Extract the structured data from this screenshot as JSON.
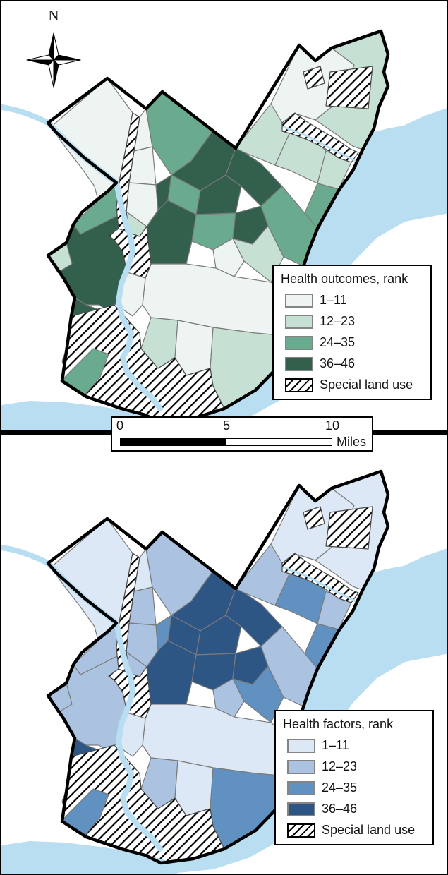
{
  "figure": {
    "compass_label": "N",
    "frame_border_color": "#000000"
  },
  "scalebar": {
    "tick_labels": [
      "0",
      "5",
      "10"
    ],
    "unit": "Miles"
  },
  "panels": [
    {
      "id": "outcomes",
      "legend_title": "Health outcomes, rank",
      "classes": [
        "1–11",
        "12–23",
        "24–35",
        "36–46"
      ],
      "special_label": "Special land use",
      "palette": [
        "#eef4f2",
        "#c6e1d4",
        "#6aaa8e",
        "#32604c"
      ]
    },
    {
      "id": "factors",
      "legend_title": "Health factors, rank",
      "classes": [
        "1–11",
        "12–23",
        "24–35",
        "36–46"
      ],
      "special_label": "Special land use",
      "palette": [
        "#dce8f5",
        "#abc3e1",
        "#6191c1",
        "#2e5685"
      ]
    }
  ],
  "map_data": {
    "water_color": "#b9ddf1",
    "city_boundary_color": "#000000",
    "district_line_color": "#7a7a7a",
    "hatch_label": "Special land use",
    "districts": [
      {
        "id": "roxborough",
        "outcomes": 1,
        "factors": 1
      },
      {
        "id": "chestnut-hill",
        "outcomes": 1,
        "factors": 1
      },
      {
        "id": "mt-airy",
        "outcomes": 1,
        "factors": 2
      },
      {
        "id": "germantown",
        "outcomes": 1,
        "factors": 2
      },
      {
        "id": "east-falls",
        "outcomes": 2,
        "factors": 2
      },
      {
        "id": "olney-oak-lane",
        "outcomes": 3,
        "factors": 2
      },
      {
        "id": "hunting-park",
        "outcomes": 4,
        "factors": 4
      },
      {
        "id": "nicetown-tioga",
        "outcomes": 4,
        "factors": 3
      },
      {
        "id": "upper-north",
        "outcomes": 3,
        "factors": 4
      },
      {
        "id": "fairhill",
        "outcomes": 4,
        "factors": 4
      },
      {
        "id": "frankford",
        "outcomes": 4,
        "factors": 4
      },
      {
        "id": "north-central",
        "outcomes": 4,
        "factors": 4
      },
      {
        "id": "kensington",
        "outcomes": 3,
        "factors": 4
      },
      {
        "id": "harrowgate",
        "outcomes": 4,
        "factors": 4
      },
      {
        "id": "northern-liberties",
        "outcomes": 1,
        "factors": 2
      },
      {
        "id": "fishtown",
        "outcomes": 2,
        "factors": 3
      },
      {
        "id": "lawncrest",
        "outcomes": 2,
        "factors": 2
      },
      {
        "id": "oxford-circle",
        "outcomes": 2,
        "factors": 3
      },
      {
        "id": "holmesburg",
        "outcomes": 2,
        "factors": 2
      },
      {
        "id": "tacony",
        "outcomes": 3,
        "factors": 3
      },
      {
        "id": "bridesburg",
        "outcomes": 3,
        "factors": 2
      },
      {
        "id": "far-northeast-west",
        "outcomes": 1,
        "factors": 1
      },
      {
        "id": "far-northeast-east",
        "outcomes": 2,
        "factors": 1
      },
      {
        "id": "overbrook",
        "outcomes": 3,
        "factors": 2
      },
      {
        "id": "west-philadelphia",
        "outcomes": 4,
        "factors": 2
      },
      {
        "id": "kingsessing",
        "outcomes": 4,
        "factors": 4
      },
      {
        "id": "center-city",
        "outcomes": 1,
        "factors": 1
      },
      {
        "id": "point-breeze",
        "outcomes": 2,
        "factors": 2
      },
      {
        "id": "south-philadelphia-east",
        "outcomes": 1,
        "factors": 1
      },
      {
        "id": "whitman-riverfront",
        "outcomes": 2,
        "factors": 3
      },
      {
        "id": "west-tip",
        "outcomes": 2,
        "factors": 2
      },
      {
        "id": "elmwood",
        "outcomes": 3,
        "factors": 3
      },
      {
        "id": "university-city",
        "outcomes": 1,
        "factors": 1
      },
      {
        "id": "wissahickon-valley-park",
        "outcomes": "h",
        "factors": "h"
      },
      {
        "id": "fairmount-park",
        "outcomes": "h",
        "factors": "h"
      },
      {
        "id": "southwest-parkland",
        "outcomes": "h",
        "factors": "h"
      },
      {
        "id": "northeast-parkland",
        "outcomes": "h",
        "factors": "h"
      },
      {
        "id": "somerton-parkland",
        "outcomes": "h",
        "factors": "h"
      },
      {
        "id": "pennypack-park",
        "outcomes": "h",
        "factors": "h"
      }
    ]
  }
}
